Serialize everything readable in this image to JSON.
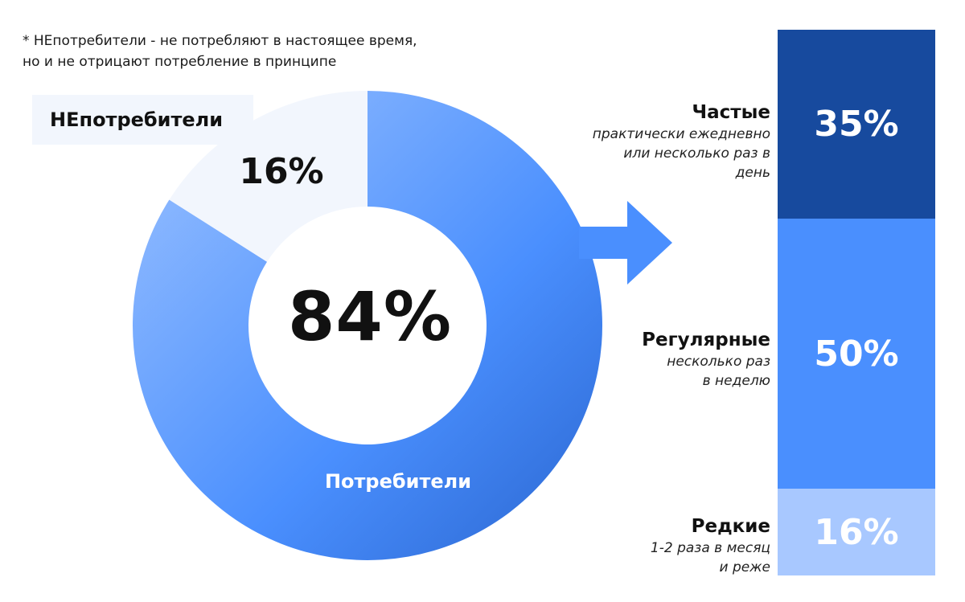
{
  "footnote": {
    "line1": "* НЕпотребители - не потребляют в настоящее время,",
    "line2": "но и не отрицают потребление в принципе"
  },
  "colors": {
    "non_consumers_fill": "#f2f6fd",
    "consumers_gradient": [
      "#94bcff",
      "#4a8ffe",
      "#2d6bd6"
    ],
    "arrow": "#4a8ffe",
    "bar_frequent": "#174a9e",
    "bar_regular": "#4a8ffe",
    "bar_rare": "#a8c8ff"
  },
  "chart_data": [
    {
      "type": "pie",
      "slices": [
        {
          "name": "НЕпотребители",
          "value": 16,
          "label": "16%"
        },
        {
          "name": "Потребители",
          "value": 84,
          "label": "84%"
        }
      ]
    },
    {
      "type": "bar",
      "stacked": true,
      "categories": [
        "Частые",
        "Регулярные",
        "Редкие"
      ],
      "descriptions": [
        [
          "практически ежедневно",
          "или несколько раз в",
          "день"
        ],
        [
          "несколько раз",
          "в неделю"
        ],
        [
          "1-2 раза в месяц",
          "и реже"
        ]
      ],
      "values": [
        35,
        50,
        16
      ],
      "labels": [
        "35%",
        "50%",
        "16%"
      ]
    }
  ]
}
